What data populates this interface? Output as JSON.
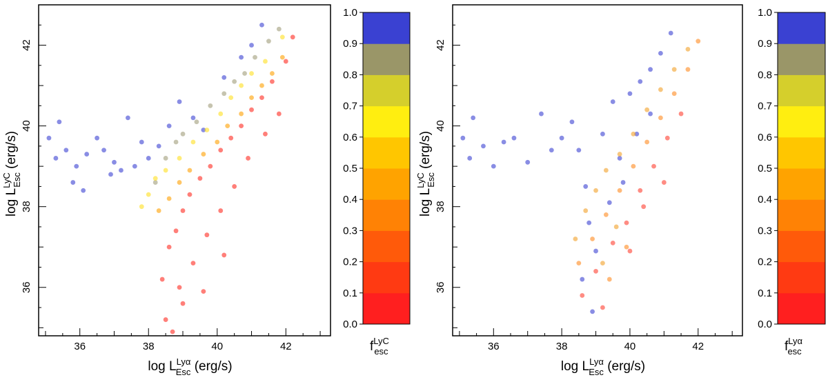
{
  "chart_data": [
    {
      "type": "scatter",
      "panel": "left",
      "xlabel": {
        "base": "log L",
        "sup": "Lyα",
        "sub": "Esc",
        "tail": " (erg/s)"
      },
      "ylabel": {
        "base": "log L",
        "sup": "LyC",
        "sub": "Esc",
        "tail": " (erg/s)"
      },
      "xlim": [
        34.8,
        43.3
      ],
      "ylim": [
        34.8,
        43.0
      ],
      "xticks": [
        "36",
        "38",
        "40",
        "42"
      ],
      "yticks": [
        "36",
        "38",
        "40",
        "42"
      ],
      "color_by": "LyC escape fraction",
      "colorbar": {
        "label": {
          "base": "f",
          "sup": "LyC",
          "sub": "esc"
        },
        "ticks": [
          "0.0",
          "0.1",
          "0.2",
          "0.3",
          "0.4",
          "0.5",
          "0.6",
          "0.7",
          "0.8",
          "0.9",
          "1.0"
        ]
      },
      "series": [
        {
          "values": [
            [
              35.1,
              39.7
            ],
            [
              35.4,
              40.1
            ],
            [
              35.3,
              39.2
            ],
            [
              35.6,
              39.4
            ],
            [
              35.9,
              39.0
            ],
            [
              36.2,
              39.3
            ],
            [
              36.5,
              39.7
            ],
            [
              36.7,
              39.4
            ],
            [
              37.0,
              39.1
            ],
            [
              37.4,
              40.2
            ],
            [
              37.2,
              38.9
            ],
            [
              37.6,
              39.0
            ],
            [
              36.9,
              38.8
            ],
            [
              36.1,
              38.4
            ],
            [
              35.8,
              38.6
            ],
            [
              37.8,
              39.6
            ],
            [
              38.0,
              39.2
            ],
            [
              38.3,
              39.5
            ],
            [
              38.6,
              40.0
            ],
            [
              38.9,
              40.6
            ],
            [
              39.3,
              40.2
            ],
            [
              39.6,
              39.9
            ],
            [
              40.2,
              41.2
            ],
            [
              40.7,
              41.7
            ],
            [
              41.0,
              42.0
            ],
            [
              41.3,
              42.5
            ]
          ]
        },
        {
          "values": [
            [
              38.2,
              38.6
            ],
            [
              38.5,
              39.2
            ],
            [
              38.8,
              39.6
            ],
            [
              39.0,
              39.8
            ],
            [
              39.4,
              40.1
            ],
            [
              39.8,
              40.5
            ],
            [
              40.2,
              40.8
            ],
            [
              40.5,
              41.1
            ],
            [
              40.8,
              41.3
            ],
            [
              41.1,
              41.7
            ],
            [
              41.5,
              42.1
            ],
            [
              41.8,
              42.4
            ]
          ]
        },
        {
          "values": [
            [
              37.8,
              38.0
            ],
            [
              38.0,
              38.3
            ],
            [
              38.2,
              38.7
            ],
            [
              38.5,
              38.9
            ],
            [
              38.9,
              39.2
            ],
            [
              39.3,
              39.6
            ],
            [
              39.7,
              39.9
            ],
            [
              40.1,
              40.3
            ],
            [
              40.4,
              40.7
            ],
            [
              40.7,
              41.0
            ],
            [
              41.0,
              41.3
            ],
            [
              41.4,
              41.6
            ],
            [
              41.9,
              42.2
            ]
          ]
        },
        {
          "values": [
            [
              38.3,
              37.9
            ],
            [
              38.6,
              38.2
            ],
            [
              38.9,
              38.6
            ],
            [
              39.2,
              38.9
            ],
            [
              39.6,
              39.3
            ],
            [
              40.0,
              39.6
            ],
            [
              40.3,
              40.0
            ],
            [
              40.7,
              40.3
            ],
            [
              41.0,
              40.7
            ],
            [
              41.3,
              41.0
            ],
            [
              41.6,
              41.3
            ],
            [
              41.9,
              41.7
            ]
          ]
        },
        {
          "values": [
            [
              38.4,
              36.2
            ],
            [
              38.6,
              37.0
            ],
            [
              38.8,
              37.4
            ],
            [
              39.0,
              37.9
            ],
            [
              39.2,
              38.3
            ],
            [
              39.5,
              38.7
            ],
            [
              39.8,
              39.0
            ],
            [
              40.1,
              39.4
            ],
            [
              40.4,
              39.7
            ],
            [
              40.7,
              40.0
            ],
            [
              41.0,
              40.4
            ],
            [
              41.3,
              40.7
            ],
            [
              41.6,
              41.1
            ],
            [
              42.0,
              41.6
            ],
            [
              42.2,
              42.2
            ],
            [
              38.5,
              35.2
            ],
            [
              38.9,
              36.0
            ],
            [
              39.3,
              36.6
            ],
            [
              39.7,
              37.3
            ],
            [
              40.1,
              37.9
            ],
            [
              40.5,
              38.5
            ],
            [
              40.9,
              39.2
            ],
            [
              41.4,
              39.8
            ],
            [
              41.8,
              40.3
            ],
            [
              39.0,
              35.6
            ],
            [
              39.6,
              35.9
            ],
            [
              40.2,
              36.8
            ],
            [
              38.7,
              34.9
            ]
          ]
        }
      ]
    },
    {
      "type": "scatter",
      "panel": "right",
      "xlabel": {
        "base": "log L",
        "sup": "Lyα",
        "sub": "Esc",
        "tail": " (erg/s)"
      },
      "ylabel": {
        "base": "log L",
        "sup": "LyC",
        "sub": "Esc",
        "tail": " (erg/s)"
      },
      "xlim": [
        34.8,
        43.3
      ],
      "ylim": [
        34.8,
        43.0
      ],
      "xticks": [
        "36",
        "38",
        "40",
        "42"
      ],
      "yticks": [
        "36",
        "38",
        "40",
        "42"
      ],
      "color_by": "Lyα escape fraction",
      "colorbar": {
        "label": {
          "base": "f",
          "sup": "Lyα",
          "sub": "esc"
        },
        "ticks": [
          "0.0",
          "0.1",
          "0.2",
          "0.3",
          "0.4",
          "0.5",
          "0.6",
          "0.7",
          "0.8",
          "0.9",
          "1.0"
        ]
      },
      "series": [
        {
          "values": [
            [
              35.1,
              39.7
            ],
            [
              35.4,
              40.2
            ],
            [
              35.3,
              39.2
            ],
            [
              35.7,
              39.5
            ],
            [
              36.0,
              39.0
            ],
            [
              36.3,
              39.6
            ],
            [
              36.6,
              39.7
            ],
            [
              37.0,
              39.1
            ],
            [
              37.4,
              40.3
            ],
            [
              37.7,
              39.4
            ],
            [
              38.0,
              39.7
            ],
            [
              38.3,
              40.1
            ],
            [
              38.5,
              39.4
            ],
            [
              38.7,
              38.5
            ],
            [
              38.8,
              37.6
            ],
            [
              39.0,
              36.9
            ],
            [
              39.2,
              39.8
            ],
            [
              39.5,
              40.6
            ],
            [
              39.7,
              39.2
            ],
            [
              40.0,
              40.8
            ],
            [
              40.3,
              41.1
            ],
            [
              40.6,
              41.4
            ],
            [
              40.9,
              41.8
            ],
            [
              41.2,
              42.3
            ],
            [
              38.6,
              36.2
            ],
            [
              38.9,
              35.4
            ],
            [
              39.4,
              38.1
            ],
            [
              39.8,
              38.6
            ],
            [
              40.2,
              39.8
            ],
            [
              40.6,
              40.3
            ]
          ]
        },
        {
          "values": [
            [
              38.4,
              37.2
            ],
            [
              38.7,
              37.9
            ],
            [
              39.0,
              38.4
            ],
            [
              39.3,
              38.9
            ],
            [
              39.7,
              39.3
            ],
            [
              40.1,
              39.8
            ],
            [
              40.5,
              40.4
            ],
            [
              40.9,
              40.9
            ],
            [
              41.3,
              41.4
            ],
            [
              41.7,
              41.9
            ],
            [
              39.2,
              36.6
            ],
            [
              39.6,
              37.5
            ]
          ]
        },
        {
          "values": [
            [
              38.5,
              36.6
            ],
            [
              38.9,
              37.2
            ],
            [
              39.3,
              37.8
            ],
            [
              39.7,
              38.4
            ],
            [
              40.1,
              39.0
            ],
            [
              40.5,
              39.6
            ],
            [
              40.9,
              40.2
            ],
            [
              41.3,
              40.8
            ],
            [
              41.7,
              41.4
            ],
            [
              42.0,
              42.1
            ],
            [
              39.4,
              36.2
            ],
            [
              39.9,
              37.0
            ]
          ]
        },
        {
          "values": [
            [
              38.6,
              35.8
            ],
            [
              39.0,
              36.4
            ],
            [
              39.5,
              37.1
            ],
            [
              39.9,
              37.6
            ],
            [
              40.3,
              38.4
            ],
            [
              40.7,
              39.0
            ],
            [
              41.1,
              39.7
            ],
            [
              41.5,
              40.3
            ],
            [
              39.2,
              35.5
            ],
            [
              40.0,
              36.9
            ],
            [
              40.4,
              38.0
            ],
            [
              41.0,
              38.6
            ]
          ]
        }
      ]
    }
  ]
}
